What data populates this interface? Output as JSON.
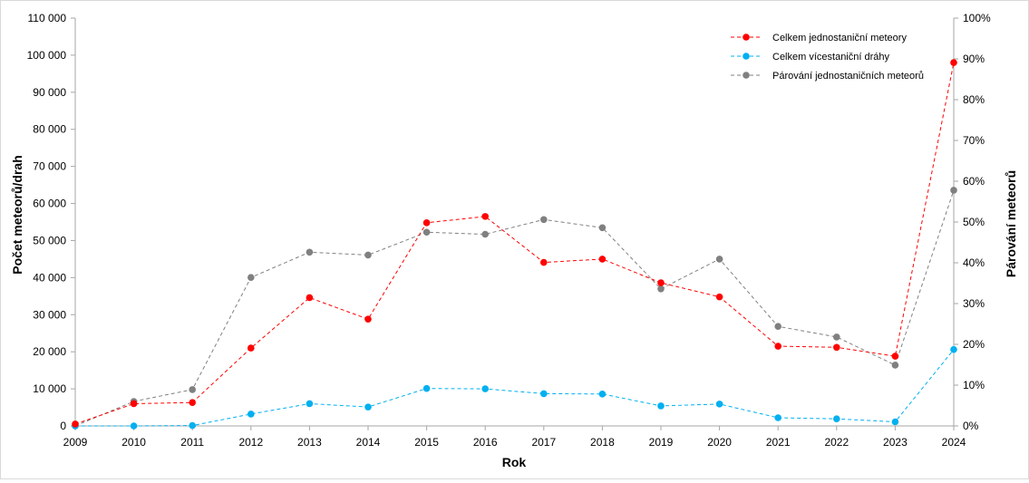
{
  "chart_data": {
    "type": "line",
    "x": [
      "2009",
      "2010",
      "2011",
      "2012",
      "2013",
      "2014",
      "2015",
      "2016",
      "2017",
      "2018",
      "2019",
      "2020",
      "2021",
      "2022",
      "2023",
      "2024"
    ],
    "xlabel": "Rok",
    "ylabel": "Počet meteorů/drah",
    "y2label": "Párování meteorů",
    "ylim": [
      0,
      110000
    ],
    "y2lim": [
      0,
      100
    ],
    "y_ticks": [
      "0",
      "10 000",
      "20 000",
      "30 000",
      "40 000",
      "50 000",
      "60 000",
      "70 000",
      "80 000",
      "90 000",
      "100 000",
      "110 000"
    ],
    "y2_ticks": [
      "0%",
      "10%",
      "20%",
      "30%",
      "40%",
      "50%",
      "60%",
      "70%",
      "80%",
      "90%",
      "100%"
    ],
    "grid": false,
    "legend_position": "top-right",
    "series": [
      {
        "name": "Celkem jednostaniční meteory",
        "axis": "left",
        "color": "#ff0000",
        "values": [
          500,
          6000,
          6300,
          21000,
          34600,
          28800,
          54800,
          56500,
          44100,
          45000,
          38600,
          34800,
          21500,
          21200,
          18800,
          98000
        ]
      },
      {
        "name": "Celkem vícestaniční dráhy",
        "axis": "left",
        "color": "#00b0f0",
        "values": [
          0,
          0,
          100,
          3200,
          6000,
          5100,
          10100,
          10000,
          8700,
          8600,
          5400,
          5900,
          2200,
          1900,
          1100,
          20600
        ]
      },
      {
        "name": "Párování jednostaničních meteorů",
        "axis": "right",
        "color": "#808080",
        "values": [
          0,
          6,
          8.9,
          36.4,
          42.6,
          41.9,
          47.5,
          47,
          50.6,
          48.6,
          33.6,
          40.9,
          24.4,
          21.8,
          14.9,
          57.8
        ]
      }
    ]
  }
}
